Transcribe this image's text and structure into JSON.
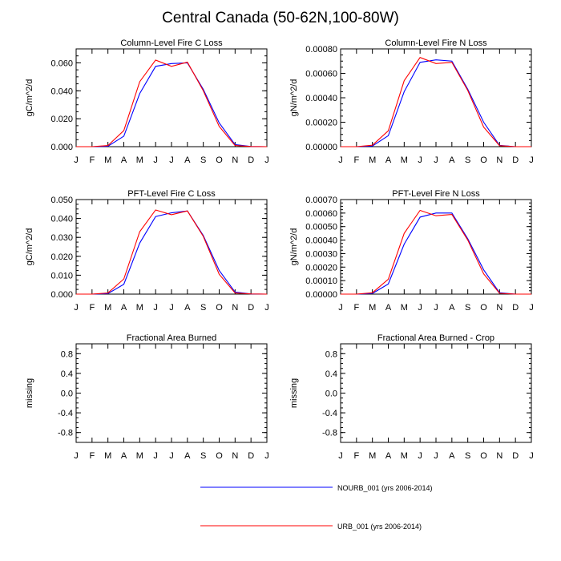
{
  "title": "Central Canada (50-62N,100-80W)",
  "colors": {
    "NOURB": "#0000ff",
    "URB": "#ff0000",
    "axis": "#000000"
  },
  "legend": {
    "entries": [
      {
        "name": "NOURB_001 (yrs 2006-2014)",
        "color": "#0000ff"
      },
      {
        "name": "URB_001 (yrs 2006-2014)",
        "color": "#ff0000"
      }
    ]
  },
  "chart_data": [
    {
      "type": "line",
      "title": "Column-Level Fire C Loss",
      "ylabel": "gC/m^2/d",
      "xlabel": "",
      "categories": [
        "J",
        "F",
        "M",
        "A",
        "M",
        "J",
        "J",
        "A",
        "S",
        "O",
        "N",
        "D",
        "J"
      ],
      "ylim": [
        0,
        0.07
      ],
      "yticks": [
        0,
        0.02,
        0.04,
        0.06
      ],
      "ytick_labels": [
        "0.000",
        "0.020",
        "0.040",
        "0.060"
      ],
      "series": [
        {
          "name": "NOURB_001 (yrs 2006-2014)",
          "color": "#0000ff",
          "values": [
            0,
            0,
            0.0003,
            0.0075,
            0.038,
            0.0575,
            0.0595,
            0.06,
            0.041,
            0.017,
            0.0015,
            0.0001,
            0
          ]
        },
        {
          "name": "URB_001 (yrs 2006-2014)",
          "color": "#ff0000",
          "values": [
            0,
            0,
            0.0008,
            0.0115,
            0.0465,
            0.062,
            0.0575,
            0.0605,
            0.04,
            0.0145,
            0.0008,
            0.0001,
            0
          ]
        }
      ]
    },
    {
      "type": "line",
      "title": "Column-Level Fire N Loss",
      "ylabel": "gN/m^2/d",
      "xlabel": "",
      "categories": [
        "J",
        "F",
        "M",
        "A",
        "M",
        "J",
        "J",
        "A",
        "S",
        "O",
        "N",
        "D",
        "J"
      ],
      "ylim": [
        0,
        0.0008
      ],
      "yticks": [
        0,
        0.0002,
        0.0004,
        0.0006,
        0.0008
      ],
      "ytick_labels": [
        "0.00000",
        "0.00020",
        "0.00040",
        "0.00060",
        "0.00080"
      ],
      "series": [
        {
          "name": "NOURB_001 (yrs 2006-2014)",
          "color": "#0000ff",
          "values": [
            0,
            0,
            5e-06,
            9e-05,
            0.00045,
            0.00069,
            0.00071,
            0.0007,
            0.00047,
            0.0002,
            1e-05,
            0,
            0
          ]
        },
        {
          "name": "URB_001 (yrs 2006-2014)",
          "color": "#ff0000",
          "values": [
            0,
            0,
            1.2e-05,
            0.00013,
            0.00054,
            0.00073,
            0.00068,
            0.00069,
            0.00046,
            0.00016,
            8e-06,
            0,
            0
          ]
        }
      ]
    },
    {
      "type": "line",
      "title": "PFT-Level Fire C Loss",
      "ylabel": "gC/m^2/d",
      "xlabel": "",
      "categories": [
        "J",
        "F",
        "M",
        "A",
        "M",
        "J",
        "J",
        "A",
        "S",
        "O",
        "N",
        "D",
        "J"
      ],
      "ylim": [
        0,
        0.05
      ],
      "yticks": [
        0,
        0.01,
        0.02,
        0.03,
        0.04,
        0.05
      ],
      "ytick_labels": [
        "0.000",
        "0.010",
        "0.020",
        "0.030",
        "0.040",
        "0.050"
      ],
      "series": [
        {
          "name": "NOURB_001 (yrs 2006-2014)",
          "color": "#0000ff",
          "values": [
            0,
            0,
            0.0003,
            0.0052,
            0.027,
            0.041,
            0.043,
            0.044,
            0.031,
            0.0125,
            0.0011,
            0.0001,
            0
          ]
        },
        {
          "name": "URB_001 (yrs 2006-2014)",
          "color": "#ff0000",
          "values": [
            0,
            0,
            0.0006,
            0.008,
            0.033,
            0.0445,
            0.042,
            0.044,
            0.0305,
            0.0105,
            0.0006,
            0.0001,
            0
          ]
        }
      ]
    },
    {
      "type": "line",
      "title": "PFT-Level Fire N Loss",
      "ylabel": "gN/m^2/d",
      "xlabel": "",
      "categories": [
        "J",
        "F",
        "M",
        "A",
        "M",
        "J",
        "J",
        "A",
        "S",
        "O",
        "N",
        "D",
        "J"
      ],
      "ylim": [
        0,
        0.0007
      ],
      "yticks": [
        0,
        0.0001,
        0.0002,
        0.0003,
        0.0004,
        0.0005,
        0.0006,
        0.0007
      ],
      "ytick_labels": [
        "0.00000",
        "0.00010",
        "0.00020",
        "0.00030",
        "0.00040",
        "0.00050",
        "0.00060",
        "0.00070"
      ],
      "series": [
        {
          "name": "NOURB_001 (yrs 2006-2014)",
          "color": "#0000ff",
          "values": [
            0,
            0,
            5e-06,
            7.5e-05,
            0.00037,
            0.00057,
            0.0006,
            0.0006,
            0.00041,
            0.00018,
            1e-05,
            0,
            0
          ]
        },
        {
          "name": "URB_001 (yrs 2006-2014)",
          "color": "#ff0000",
          "values": [
            0,
            0,
            1e-05,
            0.00011,
            0.00045,
            0.00062,
            0.00058,
            0.00059,
            0.0004,
            0.00015,
            6e-06,
            0,
            0
          ]
        }
      ]
    },
    {
      "type": "line",
      "title": "Fractional Area Burned",
      "ylabel": "missing",
      "xlabel": "",
      "categories": [
        "J",
        "F",
        "M",
        "A",
        "M",
        "J",
        "J",
        "A",
        "S",
        "O",
        "N",
        "D",
        "J"
      ],
      "ylim": [
        -1,
        1
      ],
      "yticks": [
        -0.8,
        -0.4,
        0,
        0.4,
        0.8
      ],
      "ytick_labels": [
        "-0.8",
        "-0.4",
        "0.0",
        "0.4",
        "0.8"
      ],
      "series": []
    },
    {
      "type": "line",
      "title": "Fractional Area Burned - Crop",
      "ylabel": "missing",
      "xlabel": "",
      "categories": [
        "J",
        "F",
        "M",
        "A",
        "M",
        "J",
        "J",
        "A",
        "S",
        "O",
        "N",
        "D",
        "J"
      ],
      "ylim": [
        -1,
        1
      ],
      "yticks": [
        -0.8,
        -0.4,
        0,
        0.4,
        0.8
      ],
      "ytick_labels": [
        "-0.8",
        "-0.4",
        "0.0",
        "0.4",
        "0.8"
      ],
      "series": []
    }
  ]
}
